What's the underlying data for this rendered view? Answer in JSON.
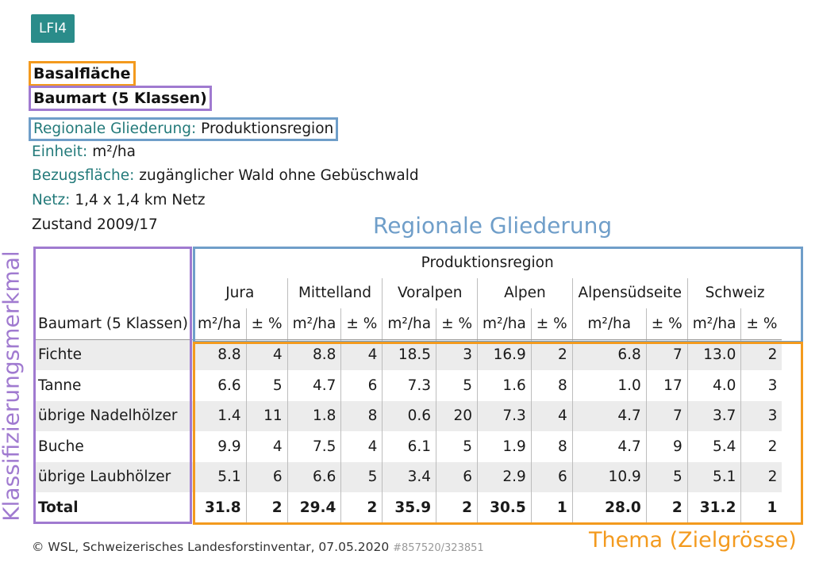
{
  "badge": "LFI4",
  "title_topic": "Basalfläche",
  "title_class": "Baumart (5 Klassen)",
  "regional": {
    "key": "Regionale Gliederung:",
    "value": "Produktionsregion"
  },
  "unit": {
    "key": "Einheit:",
    "value": "m²/ha"
  },
  "reference_area": {
    "key": "Bezugsfläche:",
    "value": "zugänglicher Wald ohne Gebüschwald"
  },
  "grid": {
    "key": "Netz:",
    "value": "1,4 x 1,4 km Netz"
  },
  "state": "Zustand 2009/17",
  "annotations": {
    "regional": "Regionale Gliederung",
    "classification": "Klassifizierungsmerkmal",
    "topic": "Thema (Zielgrösse)"
  },
  "table": {
    "group_header": "Produktionsregion",
    "row_header": "Baumart (5 Klassen)",
    "unit_label": "m²/ha",
    "error_label": "± %",
    "regions": [
      "Jura",
      "Mittelland",
      "Voralpen",
      "Alpen",
      "Alpensüdseite",
      "Schweiz"
    ],
    "rows": [
      {
        "label": "Fichte",
        "values": [
          "8.8",
          "4",
          "8.8",
          "4",
          "18.5",
          "3",
          "16.9",
          "2",
          "6.8",
          "7",
          "13.0",
          "2"
        ]
      },
      {
        "label": "Tanne",
        "values": [
          "6.6",
          "5",
          "4.7",
          "6",
          "7.3",
          "5",
          "1.6",
          "8",
          "1.0",
          "17",
          "4.0",
          "3"
        ]
      },
      {
        "label": "übrige Nadelhölzer",
        "values": [
          "1.4",
          "11",
          "1.8",
          "8",
          "0.6",
          "20",
          "7.3",
          "4",
          "4.7",
          "7",
          "3.7",
          "3"
        ]
      },
      {
        "label": "Buche",
        "values": [
          "9.9",
          "4",
          "7.5",
          "4",
          "6.1",
          "5",
          "1.9",
          "8",
          "4.7",
          "9",
          "5.4",
          "2"
        ]
      },
      {
        "label": "übrige Laubhölzer",
        "values": [
          "5.1",
          "6",
          "6.6",
          "5",
          "3.4",
          "6",
          "2.9",
          "6",
          "10.9",
          "5",
          "5.1",
          "2"
        ]
      },
      {
        "label": "Total",
        "values": [
          "31.8",
          "2",
          "29.4",
          "2",
          "35.9",
          "2",
          "30.5",
          "1",
          "28.0",
          "2",
          "31.2",
          "1"
        ]
      }
    ]
  },
  "footer": {
    "copyright": "© WSL, Schweizerisches Landesforstinventar, 07.05.2020",
    "ref": "#857520/323851"
  },
  "colors": {
    "orange": "#f39a1e",
    "purple": "#a07ad0",
    "blue": "#6f9ec9",
    "teal": "#237a7a",
    "badge": "#2a8c8a"
  }
}
